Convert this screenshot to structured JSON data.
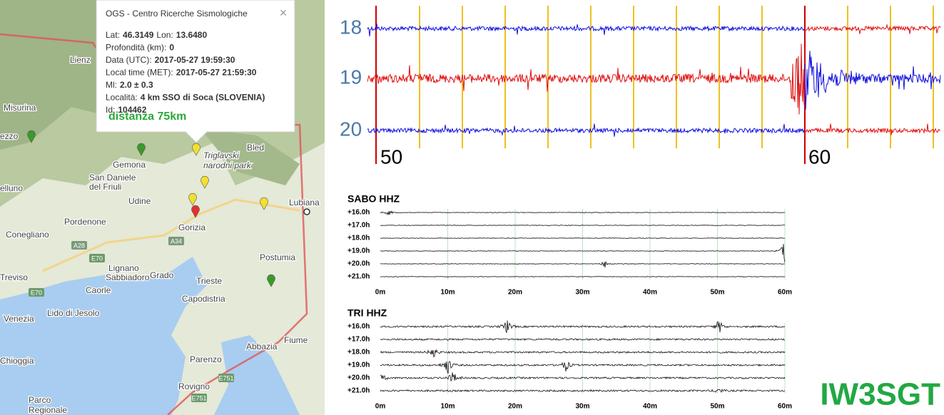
{
  "map": {
    "labels": [
      "Lienz",
      "Misurina",
      "ezzo",
      "elluno",
      "Gemona",
      "San Daniele",
      "del Friuli",
      "Udine",
      "Pordenone",
      "Conegliano",
      "Gorizia",
      "Lignano",
      "Sabbiadoro",
      "Grado",
      "Treviso",
      "Caorle",
      "Venezia",
      "Lido di Jesolo",
      "Trieste",
      "Capodistria",
      "Chioggia",
      "Parenzo",
      "Rovigno",
      "Parco",
      "Regionale",
      "Abbazia",
      "Fiume",
      "Postumia",
      "Lubiana",
      "Bled",
      "Triglavski",
      "narodni park"
    ],
    "shields": [
      "A28",
      "E70",
      "A34",
      "E70",
      "E751",
      "E751"
    ]
  },
  "popup": {
    "title": "OGS - Centro Ricerche Sismologiche",
    "close": "×",
    "lines": [
      [
        {
          "label": "Lat:",
          "value": "46.3149"
        },
        {
          "label": "Lon:",
          "value": "13.6480"
        }
      ],
      [
        {
          "label": "Profondità (km):",
          "value": "0"
        }
      ],
      [
        {
          "label": "Data (UTC):",
          "value": "2017-05-27 19:59:30"
        }
      ],
      [
        {
          "label": "Local time (MET):",
          "value": "2017-05-27 21:59:30"
        }
      ],
      [
        {
          "label": "Ml:",
          "value": "2.0 ± 0.3"
        }
      ],
      [
        {
          "label": "Località:",
          "value": "4 km SSO di Soca (SLOVENIA)"
        }
      ],
      [
        {
          "label": "Id:",
          "value": "104462"
        }
      ]
    ],
    "distance": "distanza 75km"
  },
  "seismogram": {
    "rows": [
      "18",
      "19",
      "20"
    ],
    "marks": [
      "50",
      "60"
    ]
  },
  "helicorders": [
    {
      "title": "SABO HHZ",
      "rows": [
        "+16.0h",
        "+17.0h",
        "+18.0h",
        "+19.0h",
        "+20.0h",
        "+21.0h"
      ],
      "xlabels": [
        "0m",
        "10m",
        "20m",
        "30m",
        "40m",
        "50m",
        "60m"
      ]
    },
    {
      "title": "TRI HHZ",
      "rows": [
        "+16.0h",
        "+17.0h",
        "+18.0h",
        "+19.0h",
        "+20.0h",
        "+21.0h"
      ],
      "xlabels": [
        "0m",
        "10m",
        "20m",
        "30m",
        "40m",
        "50m",
        "60m"
      ]
    }
  ],
  "callsign": "IW3SGT"
}
